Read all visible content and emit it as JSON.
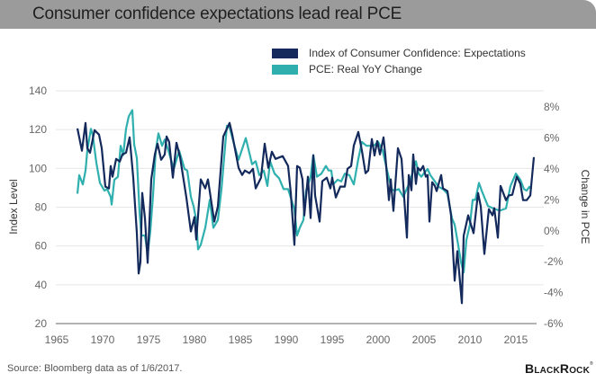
{
  "title": "Consumer confidence expectations lead real PCE",
  "source": "Source: Bloomberg data as of 1/6/2017.",
  "logo": {
    "text": "BlackRock",
    "parts": [
      "B",
      "LACK",
      "R",
      "OCK"
    ],
    "tm": "®"
  },
  "colors": {
    "title_bar": "#9b9b9b",
    "index": "#142a5c",
    "pce": "#2fb0ae",
    "grid": "#e6e6e6",
    "axis": "#666666"
  },
  "chart_data": {
    "type": "line",
    "title": "Consumer confidence expectations lead real PCE",
    "xlabel": "",
    "ylabel": "Index Level",
    "y2label": "Change in PCE",
    "xlim": [
      1965,
      2017.5
    ],
    "ylim": [
      20,
      140
    ],
    "y2lim": [
      -6,
      8
    ],
    "xticks": [
      1965,
      1970,
      1975,
      1980,
      1985,
      1990,
      1995,
      2000,
      2005,
      2010,
      2015
    ],
    "xtick_labels": [
      "1965",
      "1970",
      "1975",
      "1980",
      "1985",
      "1990",
      "1995",
      "2000",
      "2005",
      "2010",
      "2015"
    ],
    "yticks": [
      20,
      40,
      60,
      80,
      100,
      120,
      140
    ],
    "ytick_labels": [
      "20",
      "40",
      "60",
      "80",
      "100",
      "120",
      "140"
    ],
    "y2ticks": [
      -6,
      -4,
      -2,
      0,
      2,
      4,
      6,
      8
    ],
    "y2tick_labels": [
      "-6%",
      "-4%",
      "-2%",
      "0%",
      "2%",
      "4%",
      "6%",
      "8%"
    ],
    "grid": true,
    "legend_position": "top-right",
    "series": [
      {
        "name": "Index of Consumer Confidence: Expectations",
        "axis": "left",
        "color": "#142a5c",
        "points": [
          [
            1967.25,
            120.6
          ],
          [
            1967.75,
            109.1
          ],
          [
            1968.14,
            123.4
          ],
          [
            1968.33,
            110.4
          ],
          [
            1968.63,
            108.1
          ],
          [
            1969.12,
            119.7
          ],
          [
            1969.61,
            117.4
          ],
          [
            1969.9,
            110.4
          ],
          [
            1970.29,
            90.6
          ],
          [
            1970.69,
            89.7
          ],
          [
            1970.88,
            101.2
          ],
          [
            1971.08,
            95.7
          ],
          [
            1971.47,
            104.9
          ],
          [
            1971.86,
            103.5
          ],
          [
            1972.16,
            107.2
          ],
          [
            1972.55,
            108.1
          ],
          [
            1972.94,
            116
          ],
          [
            1973.33,
            95.2
          ],
          [
            1973.73,
            66.6
          ],
          [
            1973.92,
            45.8
          ],
          [
            1974.12,
            51.8
          ],
          [
            1974.31,
            87.3
          ],
          [
            1974.61,
            74.4
          ],
          [
            1974.9,
            51.3
          ],
          [
            1975.29,
            94.3
          ],
          [
            1975.69,
            107.2
          ],
          [
            1975.98,
            112.7
          ],
          [
            1976.37,
            104.4
          ],
          [
            1976.76,
            107.2
          ],
          [
            1976.96,
            116.4
          ],
          [
            1977.25,
            113.7
          ],
          [
            1977.65,
            95.2
          ],
          [
            1978.04,
            113.2
          ],
          [
            1978.43,
            105.8
          ],
          [
            1979.12,
            85
          ],
          [
            1979.61,
            67.5
          ],
          [
            1980.0,
            74.9
          ],
          [
            1980.2,
            63.3
          ],
          [
            1980.69,
            94.3
          ],
          [
            1981.18,
            89.7
          ],
          [
            1981.47,
            94.3
          ],
          [
            1982.16,
            72.6
          ],
          [
            1982.55,
            80.4
          ],
          [
            1983.14,
            116.4
          ],
          [
            1983.82,
            123.4
          ],
          [
            1984.12,
            117.4
          ],
          [
            1984.8,
            100.3
          ],
          [
            1985.2,
            96.6
          ],
          [
            1985.49,
            98.9
          ],
          [
            1985.98,
            97.5
          ],
          [
            1986.37,
            99.8
          ],
          [
            1986.67,
            89.7
          ],
          [
            1987.25,
            95.2
          ],
          [
            1987.65,
            112.7
          ],
          [
            1988.04,
            100.3
          ],
          [
            1988.43,
            108.6
          ],
          [
            1988.82,
            104.9
          ],
          [
            1989.61,
            106.3
          ],
          [
            1990.2,
            101.2
          ],
          [
            1990.49,
            87.3
          ],
          [
            1990.88,
            60.6
          ],
          [
            1991.18,
            101.2
          ],
          [
            1991.47,
            100.3
          ],
          [
            1991.76,
            94.3
          ],
          [
            1991.96,
            75.8
          ],
          [
            1992.35,
            95.7
          ],
          [
            1992.65,
            74.4
          ],
          [
            1992.94,
            106.7
          ],
          [
            1993.14,
            86
          ],
          [
            1993.63,
            72.6
          ],
          [
            1993.92,
            93.4
          ],
          [
            1994.41,
            95.2
          ],
          [
            1994.8,
            89.7
          ],
          [
            1995.0,
            95.2
          ],
          [
            1995.39,
            85
          ],
          [
            1995.88,
            90.6
          ],
          [
            1996.37,
            90.6
          ],
          [
            1996.67,
            99.8
          ],
          [
            1997.06,
            101.2
          ],
          [
            1997.35,
            111.8
          ],
          [
            1997.84,
            118.8
          ],
          [
            1998.24,
            109.1
          ],
          [
            1998.63,
            97.5
          ],
          [
            1998.92,
            98.9
          ],
          [
            1999.31,
            115.1
          ],
          [
            1999.61,
            106.7
          ],
          [
            1999.9,
            114.1
          ],
          [
            2000.2,
            107.2
          ],
          [
            2000.59,
            116
          ],
          [
            2000.78,
            106.7
          ],
          [
            2001.18,
            83.6
          ],
          [
            2001.37,
            94.3
          ],
          [
            2001.67,
            78.1
          ],
          [
            2002.16,
            110.4
          ],
          [
            2002.55,
            104.9
          ],
          [
            2003.14,
            64.3
          ],
          [
            2003.33,
            96.6
          ],
          [
            2003.63,
            88.7
          ],
          [
            2003.82,
            107.2
          ],
          [
            2004.12,
            92
          ],
          [
            2004.31,
            100.3
          ],
          [
            2004.61,
            98.9
          ],
          [
            2004.9,
            101.2
          ],
          [
            2005.2,
            95.7
          ],
          [
            2005.39,
            96.6
          ],
          [
            2005.59,
            72.6
          ],
          [
            2005.88,
            92.9
          ],
          [
            2006.18,
            91
          ],
          [
            2006.37,
            88.3
          ],
          [
            2006.86,
            96.6
          ],
          [
            2007.06,
            89.7
          ],
          [
            2007.55,
            88.3
          ],
          [
            2007.94,
            75.8
          ],
          [
            2008.33,
            42.1
          ],
          [
            2008.63,
            57.3
          ],
          [
            2009.12,
            30.5
          ],
          [
            2009.31,
            65.2
          ],
          [
            2009.8,
            75.8
          ],
          [
            2010.39,
            66.6
          ],
          [
            2010.88,
            87.3
          ],
          [
            2011.18,
            80.4
          ],
          [
            2011.57,
            55.9
          ],
          [
            2012.06,
            79
          ],
          [
            2012.45,
            75.8
          ],
          [
            2012.65,
            79.5
          ],
          [
            2013.04,
            64.3
          ],
          [
            2013.33,
            91
          ],
          [
            2013.92,
            83.6
          ],
          [
            2014.22,
            86
          ],
          [
            2014.61,
            86.4
          ],
          [
            2015.1,
            95.7
          ],
          [
            2015.49,
            92
          ],
          [
            2015.78,
            83.6
          ],
          [
            2016.18,
            83.6
          ],
          [
            2016.57,
            86
          ],
          [
            2016.96,
            105.8
          ]
        ]
      },
      {
        "name": "PCE: Real YoY Change",
        "axis": "right",
        "color": "#2fb0ae",
        "points": [
          [
            1967.25,
            2.4
          ],
          [
            1967.45,
            3.6
          ],
          [
            1967.84,
            3.0
          ],
          [
            1968.14,
            3.9
          ],
          [
            1968.33,
            5.2
          ],
          [
            1968.73,
            6.6
          ],
          [
            1968.92,
            6.2
          ],
          [
            1969.31,
            4.4
          ],
          [
            1969.71,
            3.1
          ],
          [
            1969.9,
            2.9
          ],
          [
            1970.2,
            2.6
          ],
          [
            1970.49,
            2.7
          ],
          [
            1970.88,
            2.2
          ],
          [
            1970.98,
            1.7
          ],
          [
            1971.27,
            3.3
          ],
          [
            1971.67,
            3.5
          ],
          [
            1971.96,
            5.5
          ],
          [
            1972.25,
            4.9
          ],
          [
            1972.55,
            6.6
          ],
          [
            1972.84,
            7.4
          ],
          [
            1973.24,
            7.8
          ],
          [
            1973.43,
            5.6
          ],
          [
            1973.73,
            4.7
          ],
          [
            1974.02,
            1.2
          ],
          [
            1974.22,
            -0.3
          ],
          [
            1974.61,
            -0.3
          ],
          [
            1974.9,
            -1.5
          ],
          [
            1975.2,
            0.0
          ],
          [
            1975.49,
            2.3
          ],
          [
            1975.78,
            5.2
          ],
          [
            1976.08,
            6.3
          ],
          [
            1976.47,
            5.5
          ],
          [
            1976.76,
            5.9
          ],
          [
            1977.16,
            5.2
          ],
          [
            1977.45,
            4.6
          ],
          [
            1977.75,
            4.0
          ],
          [
            1978.33,
            5.2
          ],
          [
            1978.92,
            4.0
          ],
          [
            1979.22,
            3.9
          ],
          [
            1979.61,
            2.2
          ],
          [
            1979.9,
            1.6
          ],
          [
            1980.2,
            0.7
          ],
          [
            1980.39,
            -1.2
          ],
          [
            1980.69,
            -0.9
          ],
          [
            1981.18,
            0.2
          ],
          [
            1981.67,
            2.0
          ],
          [
            1982.06,
            0.2
          ],
          [
            1982.55,
            0.7
          ],
          [
            1982.94,
            2.7
          ],
          [
            1983.53,
            6.8
          ],
          [
            1983.82,
            6.7
          ],
          [
            1984.31,
            5.6
          ],
          [
            1984.8,
            4.6
          ],
          [
            1985.2,
            5.3
          ],
          [
            1985.59,
            6.0
          ],
          [
            1986.27,
            4.3
          ],
          [
            1986.67,
            4.5
          ],
          [
            1987.06,
            3.6
          ],
          [
            1987.55,
            3.9
          ],
          [
            1987.94,
            2.9
          ],
          [
            1988.24,
            4.5
          ],
          [
            1988.73,
            3.7
          ],
          [
            1989.22,
            3.4
          ],
          [
            1989.71,
            2.7
          ],
          [
            1990.2,
            2.7
          ],
          [
            1990.88,
            1.4
          ],
          [
            1991.18,
            -0.3
          ],
          [
            1991.47,
            0.2
          ],
          [
            1991.86,
            0.7
          ],
          [
            1992.16,
            2.6
          ],
          [
            1992.65,
            3.5
          ],
          [
            1992.94,
            4.9
          ],
          [
            1993.33,
            3.5
          ],
          [
            1993.82,
            3.7
          ],
          [
            1994.31,
            4.2
          ],
          [
            1994.61,
            3.9
          ],
          [
            1994.9,
            3.9
          ],
          [
            1995.1,
            3.0
          ],
          [
            1995.59,
            3.3
          ],
          [
            1995.98,
            3.2
          ],
          [
            1996.37,
            3.7
          ],
          [
            1996.86,
            3.6
          ],
          [
            1997.35,
            3.0
          ],
          [
            1997.84,
            4.65
          ],
          [
            1998.24,
            5.75
          ],
          [
            1998.73,
            5.5
          ],
          [
            1999.22,
            5.5
          ],
          [
            1999.51,
            5.5
          ],
          [
            2000.0,
            5.75
          ],
          [
            2000.49,
            5.2
          ],
          [
            2000.98,
            3.9
          ],
          [
            2001.47,
            2.7
          ],
          [
            2001.76,
            2.6
          ],
          [
            2002.25,
            2.7
          ],
          [
            2002.75,
            2.2
          ],
          [
            2003.33,
            3.0
          ],
          [
            2003.73,
            3.7
          ],
          [
            2004.12,
            4.5
          ],
          [
            2004.41,
            3.7
          ],
          [
            2004.71,
            3.5
          ],
          [
            2005.1,
            3.8
          ],
          [
            2005.39,
            4.0
          ],
          [
            2005.69,
            3.6
          ],
          [
            2006.18,
            3.2
          ],
          [
            2006.57,
            2.85
          ],
          [
            2007.06,
            2.7
          ],
          [
            2007.55,
            2.4
          ],
          [
            2008.04,
            0.8
          ],
          [
            2008.33,
            0.4
          ],
          [
            2008.63,
            -0.6
          ],
          [
            2009.02,
            -2.0
          ],
          [
            2009.31,
            -2.7
          ],
          [
            2009.61,
            -0.6
          ],
          [
            2010.0,
            0.4
          ],
          [
            2010.29,
            2.0
          ],
          [
            2010.59,
            2.0
          ],
          [
            2010.98,
            3.1
          ],
          [
            2011.27,
            2.6
          ],
          [
            2011.96,
            1.6
          ],
          [
            2012.55,
            1.45
          ],
          [
            2013.24,
            1.3
          ],
          [
            2013.92,
            1.45
          ],
          [
            2014.41,
            2.9
          ],
          [
            2015.0,
            3.7
          ],
          [
            2015.49,
            3.3
          ],
          [
            2015.88,
            2.7
          ],
          [
            2016.18,
            2.6
          ],
          [
            2016.47,
            2.85
          ],
          [
            2016.67,
            2.7
          ]
        ]
      }
    ]
  }
}
